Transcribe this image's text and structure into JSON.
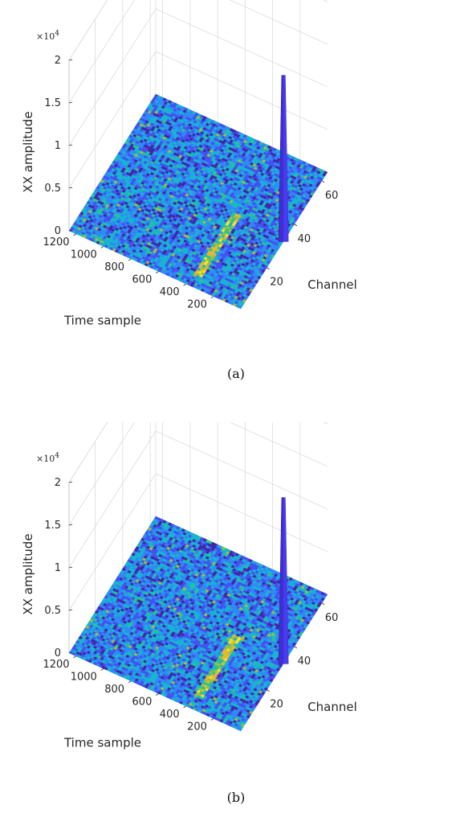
{
  "chart_data": [
    {
      "type": "surface",
      "caption": "(a)",
      "zlabel": "XX amplitude",
      "xlabel": "Channel",
      "ylabel": "Time sample",
      "z_multiplier": "×10",
      "z_multiplier_exp": "4",
      "z_ticks": [
        "0",
        "0.5",
        "1",
        "1.5",
        "2"
      ],
      "z_tick_values": [
        0,
        5000,
        10000,
        15000,
        20000
      ],
      "x_ticks": [
        "20",
        "40",
        "60"
      ],
      "x_tick_values": [
        20,
        40,
        60
      ],
      "y_ticks": [
        "200",
        "400",
        "600",
        "800",
        "1000",
        "1200"
      ],
      "y_tick_values": [
        200,
        400,
        600,
        800,
        1000,
        1200
      ],
      "xlim": [
        1,
        64
      ],
      "ylim": [
        1,
        1250
      ],
      "zlim": [
        0,
        20000
      ],
      "grid": true,
      "colormap": [
        "#3e26a8",
        "#4150f1",
        "#2d88f5",
        "#14b4cf",
        "#26c48e",
        "#9abe40",
        "#e0b92f",
        "#f8e121"
      ],
      "spike": {
        "channel": 32,
        "time_sample": 1,
        "amplitude": 19500
      },
      "band": {
        "channel_range": [
          6,
          34
        ],
        "time_range": [
          330,
          400
        ],
        "level": "elevated"
      }
    },
    {
      "type": "surface",
      "caption": "(b)",
      "zlabel": "XX amplitude",
      "xlabel": "Channel",
      "ylabel": "Time sample",
      "z_multiplier": "×10",
      "z_multiplier_exp": "4",
      "z_ticks": [
        "0",
        "0.5",
        "1",
        "1.5",
        "2"
      ],
      "z_tick_values": [
        0,
        5000,
        10000,
        15000,
        20000
      ],
      "x_ticks": [
        "20",
        "40",
        "60"
      ],
      "x_tick_values": [
        20,
        40,
        60
      ],
      "y_ticks": [
        "200",
        "400",
        "600",
        "800",
        "1000",
        "1200"
      ],
      "y_tick_values": [
        200,
        400,
        600,
        800,
        1000,
        1200
      ],
      "xlim": [
        1,
        64
      ],
      "ylim": [
        1,
        1250
      ],
      "zlim": [
        0,
        20000
      ],
      "grid": true,
      "colormap": [
        "#3e26a8",
        "#4150f1",
        "#2d88f5",
        "#14b4cf",
        "#26c48e",
        "#9abe40",
        "#e0b92f",
        "#f8e121"
      ],
      "spike": {
        "channel": 32,
        "time_sample": 1,
        "amplitude": 19500
      },
      "band": {
        "channel_range": [
          6,
          34
        ],
        "time_range": [
          330,
          400
        ],
        "level": "elevated"
      }
    }
  ]
}
